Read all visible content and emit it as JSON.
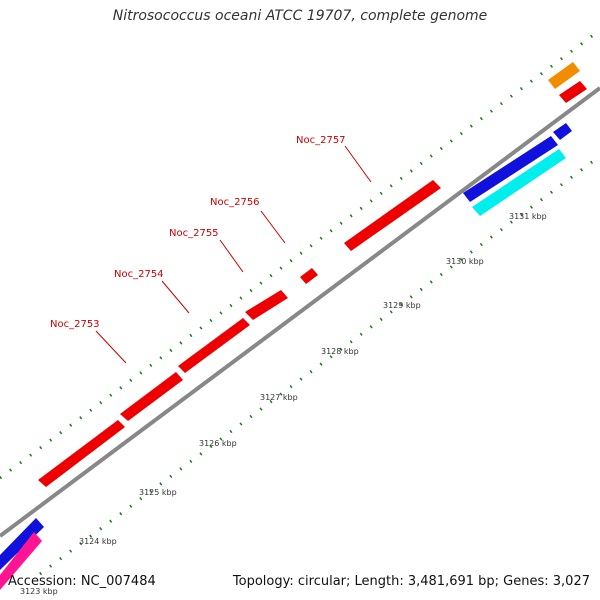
{
  "title": "Nitrosococcus oceani ATCC 19707, complete genome",
  "footer": {
    "accession": "Accession: NC_007484",
    "summary": "Topology: circular; Length: 3,481,691 bp; Genes: 3,027"
  },
  "colors": {
    "backbone": "#888888",
    "tick": "#1a7a1a",
    "red": "#ee0000",
    "blue": "#1111dd",
    "cyan": "#00eeee",
    "orange": "#f28c00",
    "magenta": "#ff1493",
    "label": "#cc0000"
  },
  "genes": [
    {
      "label": "Noc_2753",
      "color": "red"
    },
    {
      "label": "Noc_2754",
      "color": "red"
    },
    {
      "label": "Noc_2755",
      "color": "red"
    },
    {
      "label": "Noc_2756",
      "color": "red"
    },
    {
      "label": "Noc_2757",
      "color": "red"
    }
  ],
  "scale_labels": [
    "3123 kbp",
    "3124 kbp",
    "3125 kbp",
    "3126 kbp",
    "3127 kbp",
    "3128 kbp",
    "3129 kbp",
    "3130 kbp",
    "3131 kbp"
  ]
}
